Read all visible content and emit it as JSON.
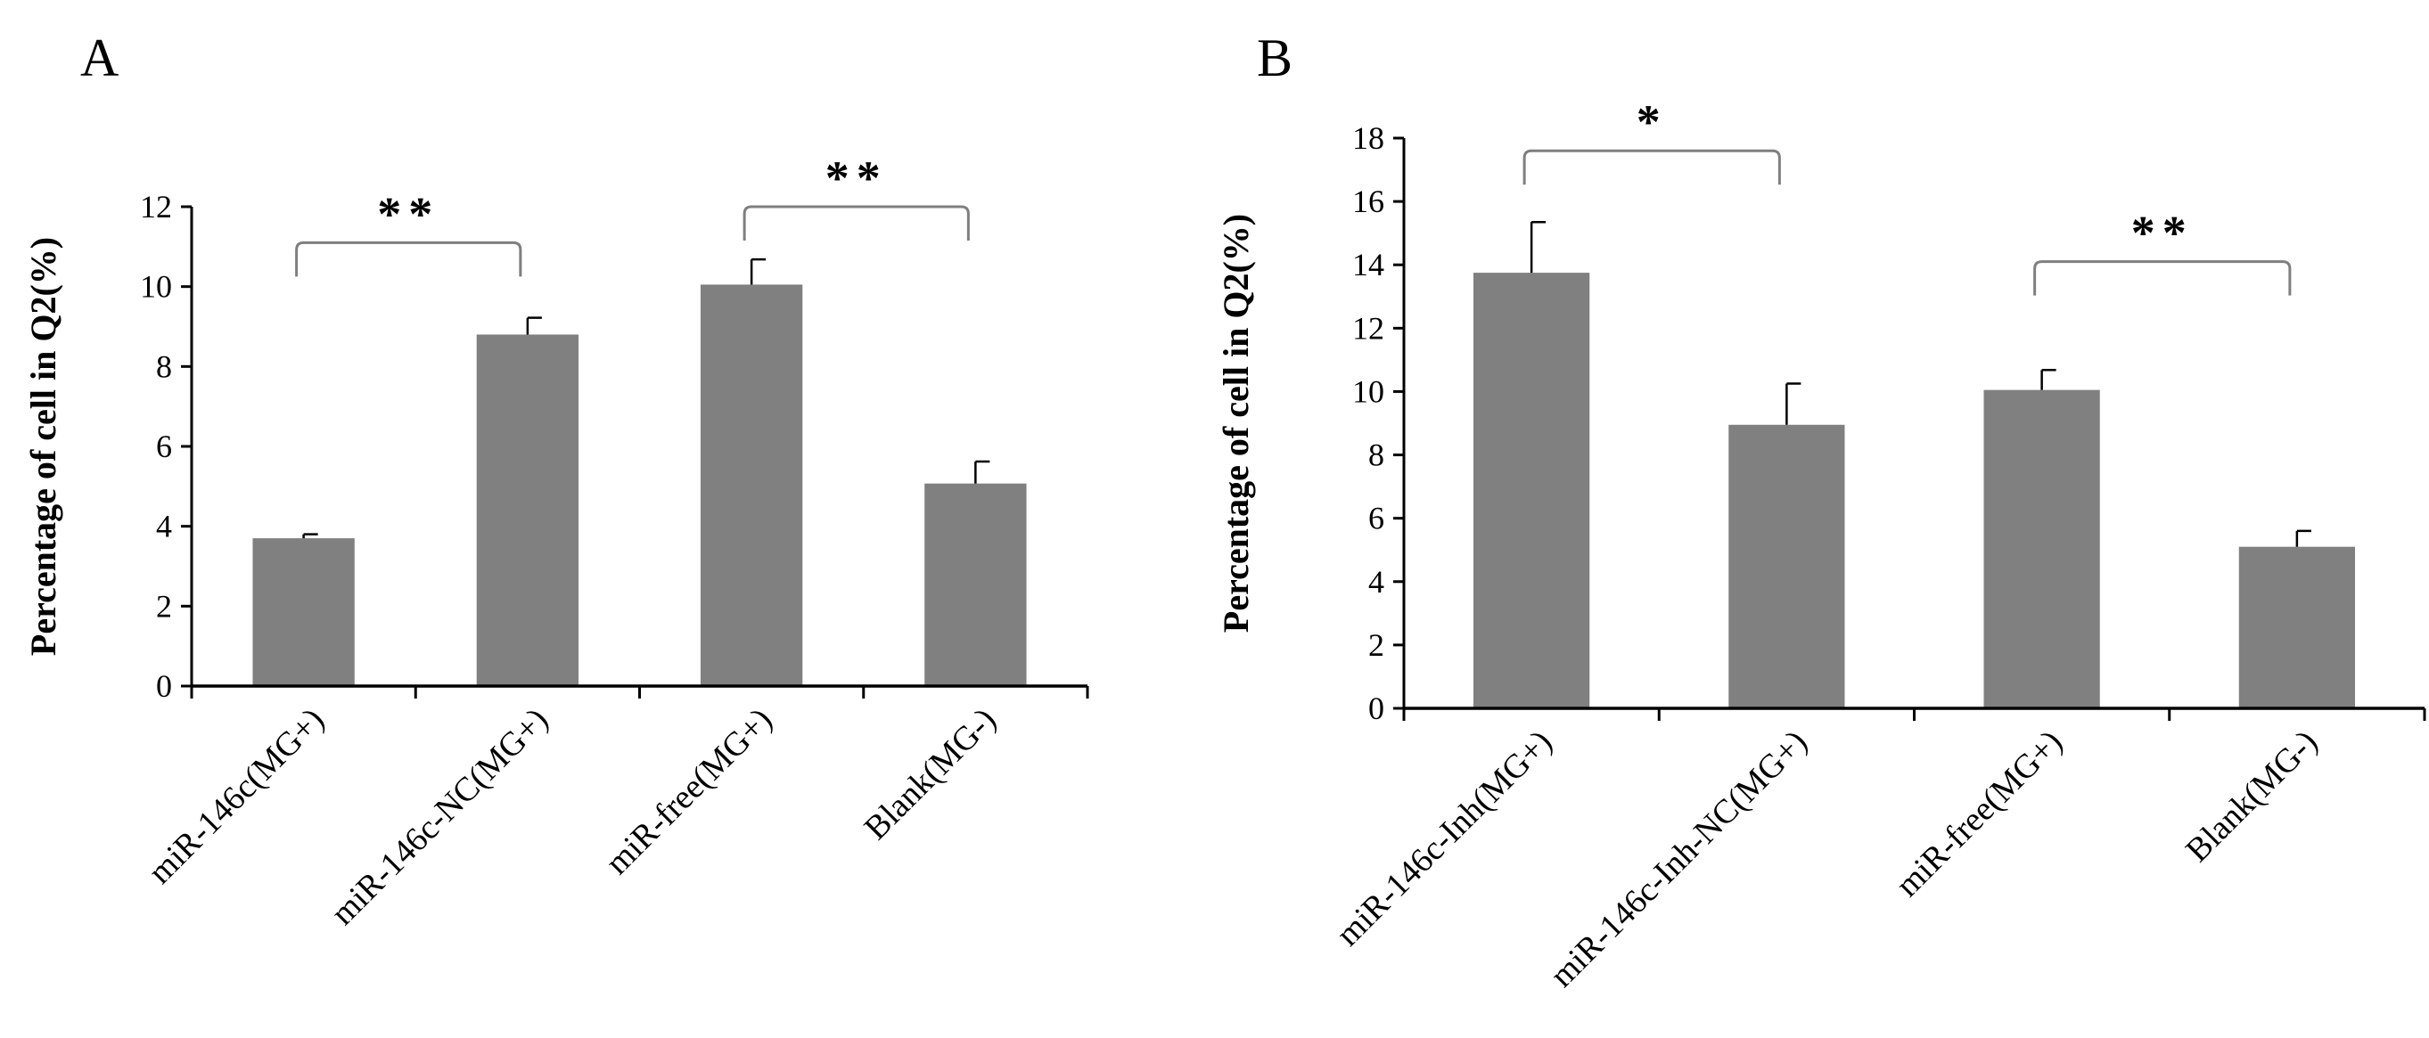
{
  "colors": {
    "bar": "#808080",
    "axis": "#000000",
    "bracket": "#7f7f7f"
  },
  "chart_data": [
    {
      "type": "bar",
      "panel_label": "A",
      "ylabel": "Percentage of cell in Q2(%)",
      "xlabel": "",
      "ylim": [
        0,
        12
      ],
      "yticks": [
        0,
        2,
        4,
        6,
        8,
        10,
        12
      ],
      "grid": false,
      "categories": [
        "miR-146c(MG+)",
        "miR-146c-NC(MG+)",
        "miR-free(MG+)",
        "Blank(MG-)"
      ],
      "values": [
        3.7,
        8.8,
        10.05,
        5.07
      ],
      "errors": [
        0.1,
        0.42,
        0.63,
        0.55
      ],
      "significance": [
        {
          "from": 0,
          "to": 1,
          "label": "**",
          "level": 11.1
        },
        {
          "from": 2,
          "to": 3,
          "label": "**",
          "level": 12.0
        }
      ]
    },
    {
      "type": "bar",
      "panel_label": "B",
      "ylabel": "Percentage of cell in Q2(%)",
      "xlabel": "",
      "ylim": [
        0,
        18
      ],
      "yticks": [
        0,
        2,
        4,
        6,
        8,
        10,
        12,
        14,
        16,
        18
      ],
      "grid": false,
      "categories": [
        "miR-146c-Inh(MG+)",
        "miR-146c-Inh-NC(MG+)",
        "miR-free(MG+)",
        "Blank(MG-)"
      ],
      "values": [
        13.75,
        8.95,
        10.05,
        5.1
      ],
      "errors": [
        1.6,
        1.3,
        0.63,
        0.5
      ],
      "significance": [
        {
          "from": 0,
          "to": 1,
          "label": "*",
          "level": 17.6
        },
        {
          "from": 2,
          "to": 3,
          "label": "**",
          "level": 14.1
        }
      ]
    }
  ]
}
